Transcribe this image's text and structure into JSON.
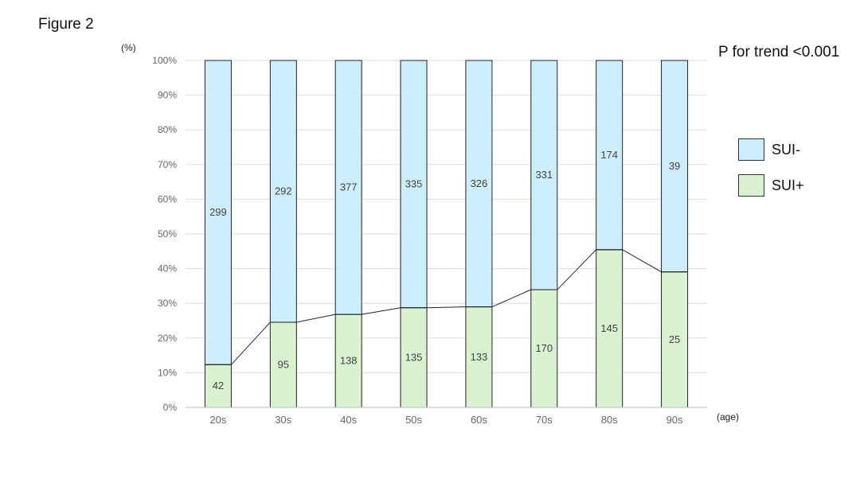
{
  "figure_label": "Figure 2",
  "annotation": "P for trend <0.001",
  "colors": {
    "neg": "#cdeefc",
    "pos": "#d9f3d1",
    "bar_stroke": "#222222",
    "grid": "#dddddd",
    "line": "#222222",
    "tick_text": "#666666",
    "value_text": "#444444"
  },
  "chart_data": {
    "type": "bar",
    "stacked": true,
    "normalized": true,
    "title": "",
    "xlabel": "(age)",
    "ylabel": "(%)",
    "ylim": [
      0,
      100
    ],
    "yticks": [
      "0%",
      "10%",
      "20%",
      "30%",
      "40%",
      "50%",
      "60%",
      "70%",
      "80%",
      "90%",
      "100%"
    ],
    "grid": true,
    "legend_position": "right",
    "categories": [
      "20s",
      "30s",
      "40s",
      "50s",
      "60s",
      "70s",
      "80s",
      "90s"
    ],
    "series": [
      {
        "name": "SUI+",
        "values": [
          42,
          95,
          138,
          135,
          133,
          170,
          145,
          25
        ]
      },
      {
        "name": "SUI-",
        "values": [
          299,
          292,
          377,
          335,
          326,
          331,
          174,
          39
        ]
      }
    ],
    "trend_line": true
  }
}
